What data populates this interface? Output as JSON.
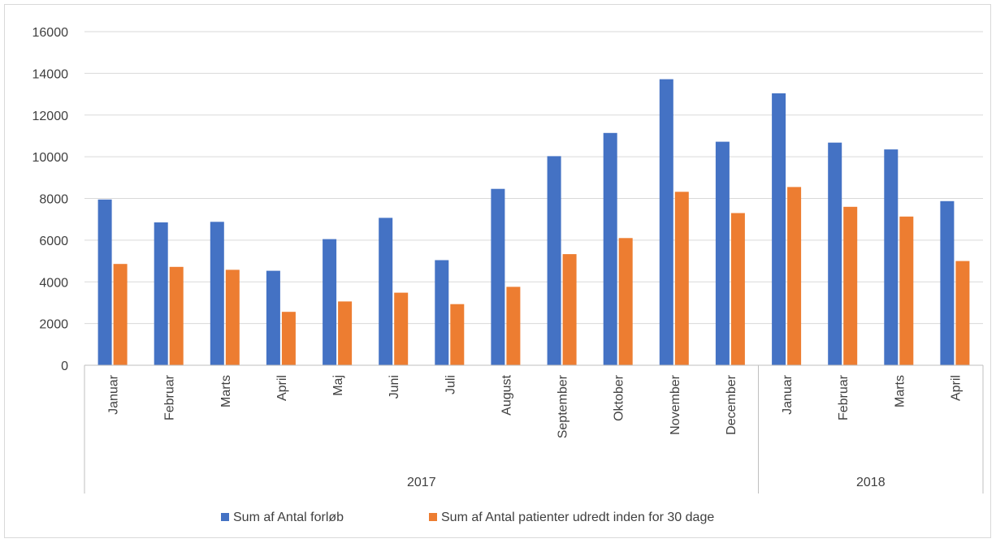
{
  "chart_data": {
    "type": "bar",
    "title": "",
    "xlabel": "",
    "ylabel": "",
    "ylim": [
      0,
      16000
    ],
    "yticks": [
      0,
      2000,
      4000,
      6000,
      8000,
      10000,
      12000,
      14000,
      16000
    ],
    "grid": true,
    "legend_position": "bottom",
    "groups": [
      {
        "label": "2017",
        "categories": [
          "Januar",
          "Februar",
          "Marts",
          "April",
          "Maj",
          "Juni",
          "Juli",
          "August",
          "September",
          "Oktober",
          "November",
          "December"
        ]
      },
      {
        "label": "2018",
        "categories": [
          "Januar",
          "Februar",
          "Marts",
          "April"
        ]
      }
    ],
    "categories": [
      "Januar",
      "Februar",
      "Marts",
      "April",
      "Maj",
      "Juni",
      "Juli",
      "August",
      "September",
      "Oktober",
      "November",
      "December",
      "Januar",
      "Februar",
      "Marts",
      "April"
    ],
    "series": [
      {
        "name": "Sum af Antal forløb",
        "color": "#4472c4",
        "values": [
          7950,
          6850,
          6880,
          4530,
          6050,
          7070,
          5040,
          8460,
          10030,
          11140,
          13720,
          10720,
          13040,
          10680,
          10350,
          7870
        ]
      },
      {
        "name": "Sum af Antal patienter udredt inden for 30 dage",
        "color": "#ed7d31",
        "values": [
          4860,
          4720,
          4580,
          2560,
          3060,
          3480,
          2930,
          3760,
          5330,
          6100,
          8320,
          7300,
          8550,
          7600,
          7130,
          5000
        ]
      }
    ]
  }
}
